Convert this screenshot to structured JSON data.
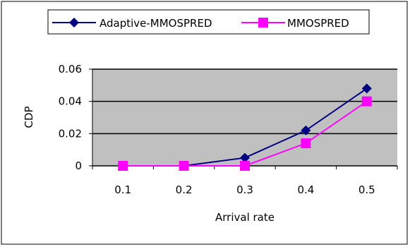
{
  "chart_data": {
    "type": "line",
    "title": "",
    "xlabel": "Arrival rate",
    "ylabel": "CDP",
    "categories": [
      "0.1",
      "0.2",
      "0.3",
      "0.4",
      "0.5"
    ],
    "ylim": [
      0,
      0.06
    ],
    "yticks": [
      "0",
      "0.02",
      "0.04",
      "0.06"
    ],
    "grid": true,
    "legend_position": "top",
    "series": [
      {
        "name": "Adaptive-MMOSPRED",
        "values": [
          0,
          0,
          0.005,
          0.022,
          0.048
        ],
        "color": "#000080",
        "marker": "diamond"
      },
      {
        "name": "MMOSPRED",
        "values": [
          0,
          0,
          0,
          0.014,
          0.04
        ],
        "color": "#ff00ff",
        "marker": "square"
      }
    ],
    "plot_background": "#c0c0c0"
  }
}
